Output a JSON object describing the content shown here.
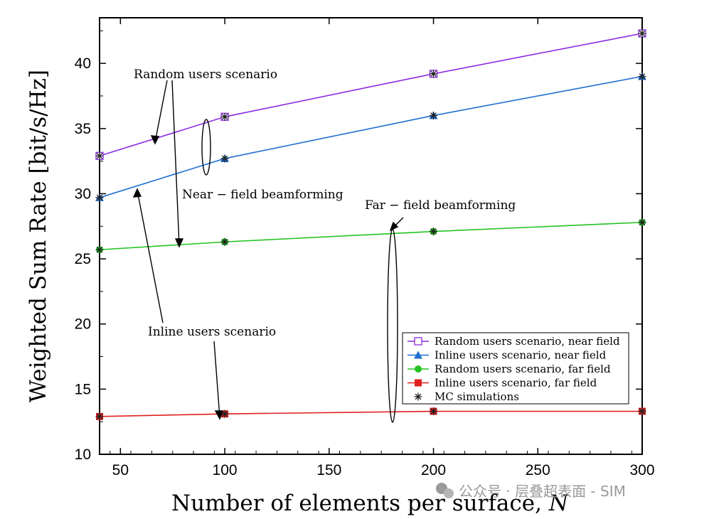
{
  "chart_data": {
    "type": "line",
    "title": "",
    "xlabel": "Number of elements per surface, ",
    "xlabel_var": "N",
    "ylabel": "Weighted Sum Rate [bit/s/Hz]",
    "xlim": [
      40,
      300
    ],
    "ylim": [
      10,
      43.5
    ],
    "xticks": [
      50,
      100,
      150,
      200,
      250,
      300
    ],
    "yticks": [
      10,
      15,
      20,
      25,
      30,
      35,
      40
    ],
    "x": [
      40,
      100,
      200,
      300
    ],
    "series": [
      {
        "name": "Random users scenario, near field",
        "color": "#8a2be2",
        "marker": "open-square",
        "values": [
          32.9,
          35.9,
          39.2,
          42.3
        ]
      },
      {
        "name": "Inline users scenario, near field",
        "color": "#1f6fd1",
        "marker": "triangle",
        "values": [
          29.7,
          32.7,
          36.0,
          39.0
        ]
      },
      {
        "name": "Random users scenario, far field",
        "color": "#22c322",
        "marker": "circle",
        "values": [
          25.7,
          26.3,
          27.1,
          27.8
        ]
      },
      {
        "name": "Inline users scenario, far field",
        "color": "#e02020",
        "marker": "square",
        "values": [
          12.9,
          13.1,
          13.3,
          13.3
        ]
      }
    ],
    "mc_legend": "MC simulations",
    "grid": false,
    "legend_position": "bottom-right",
    "annotations": {
      "random": "Random users scenario",
      "inline": "Inline users scenario",
      "near": "Near − field beamforming",
      "far": "Far − field beamforming"
    }
  },
  "watermark": "公众号 · 层叠超表面 - SIM"
}
